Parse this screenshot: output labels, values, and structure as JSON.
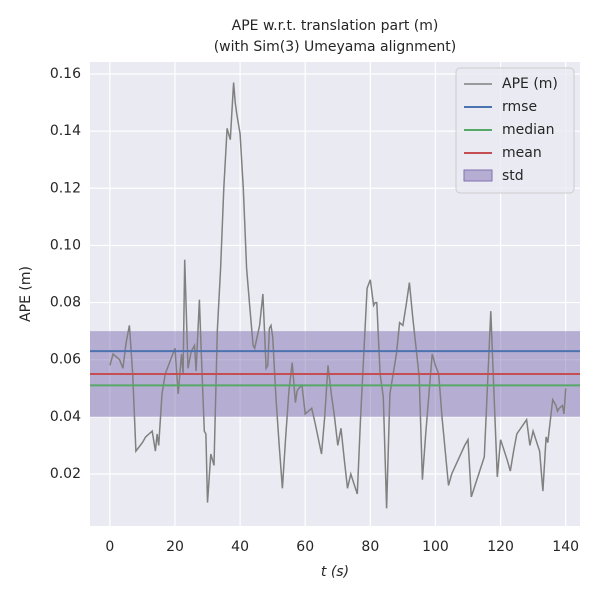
{
  "chart_data": {
    "type": "line",
    "title_lines": [
      "APE w.r.t. translation part (m)",
      "(with Sim(3) Umeyama alignment)"
    ],
    "xlabel": "t (s)",
    "ylabel": "APE (m)",
    "xlim": [
      -6.1,
      144.4
    ],
    "ylim": [
      0.0018,
      0.1642
    ],
    "xticks": [
      0,
      20,
      40,
      60,
      80,
      100,
      120,
      140
    ],
    "yticks": [
      0.02,
      0.04,
      0.06,
      0.08,
      {
        "value": 0.1,
        "label": "0.10"
      },
      0.12,
      0.14,
      0.16
    ],
    "grid": true,
    "legend": "upper right",
    "x": [
      0,
      1,
      3,
      4,
      5,
      6,
      7,
      8,
      10,
      11,
      12,
      13,
      14,
      14.5,
      15,
      16,
      17,
      19,
      20,
      21,
      22,
      22.5,
      23,
      24,
      25,
      26,
      26.5,
      27.5,
      28,
      29,
      29.5,
      30,
      31,
      32,
      33,
      34,
      35,
      36,
      37,
      38,
      38.5,
      39,
      40,
      41,
      42,
      43,
      44,
      44.5,
      46,
      47,
      48,
      48.5,
      49,
      49.5,
      50,
      51,
      52,
      53,
      54,
      55,
      56,
      57,
      57.5,
      58,
      59,
      60,
      62,
      63,
      65,
      66,
      67,
      68,
      69,
      70,
      71,
      72,
      73,
      74,
      76,
      77,
      79,
      80,
      81,
      81.5,
      82,
      83,
      84,
      85,
      86,
      88,
      89,
      90,
      91,
      92,
      93,
      95,
      96,
      97,
      99,
      100,
      101,
      102,
      104,
      105,
      107,
      109,
      110,
      111,
      113,
      115,
      117,
      118,
      119,
      120,
      122,
      123,
      124,
      125,
      128,
      129,
      130,
      132,
      133,
      134,
      134.5,
      135,
      136,
      137,
      137.5,
      138,
      139,
      139.5,
      140
    ],
    "series": [
      {
        "name": "APE (m)",
        "color": "#808080",
        "values": [
          0.058,
          0.062,
          0.06,
          0.057,
          0.066,
          0.072,
          0.055,
          0.028,
          0.031,
          0.033,
          0.034,
          0.035,
          0.028,
          0.034,
          0.03,
          0.048,
          0.055,
          0.061,
          0.064,
          0.048,
          0.062,
          0.055,
          0.095,
          0.057,
          0.063,
          0.065,
          0.056,
          0.081,
          0.065,
          0.035,
          0.034,
          0.01,
          0.027,
          0.023,
          0.07,
          0.092,
          0.12,
          0.141,
          0.137,
          0.157,
          0.15,
          0.146,
          0.139,
          0.12,
          0.092,
          0.078,
          0.065,
          0.064,
          0.072,
          0.083,
          0.057,
          0.058,
          0.071,
          0.072,
          0.068,
          0.047,
          0.03,
          0.015,
          0.033,
          0.049,
          0.059,
          0.045,
          0.049,
          0.05,
          0.051,
          0.041,
          0.043,
          0.038,
          0.027,
          0.04,
          0.058,
          0.048,
          0.04,
          0.03,
          0.036,
          0.025,
          0.015,
          0.02,
          0.013,
          0.04,
          0.085,
          0.088,
          0.079,
          0.08,
          0.08,
          0.055,
          0.047,
          0.008,
          0.048,
          0.062,
          0.073,
          0.072,
          0.079,
          0.087,
          0.075,
          0.054,
          0.018,
          0.034,
          0.062,
          0.058,
          0.055,
          0.04,
          0.016,
          0.02,
          0.025,
          0.03,
          0.032,
          0.012,
          0.019,
          0.026,
          0.077,
          0.048,
          0.019,
          0.032,
          0.025,
          0.021,
          0.028,
          0.034,
          0.039,
          0.03,
          0.035,
          0.028,
          0.014,
          0.033,
          0.031,
          0.036,
          0.046,
          0.044,
          0.042,
          0.043,
          0.044,
          0.041,
          0.05
        ]
      }
    ],
    "stats": [
      {
        "name": "rmse",
        "color": "#4c72b0",
        "value": 0.063
      },
      {
        "name": "median",
        "color": "#55a868",
        "value": 0.051
      },
      {
        "name": "mean",
        "color": "#c44e52",
        "value": 0.055
      }
    ],
    "std": {
      "name": "std",
      "color": "#8172b2",
      "value": 0.015
    }
  }
}
